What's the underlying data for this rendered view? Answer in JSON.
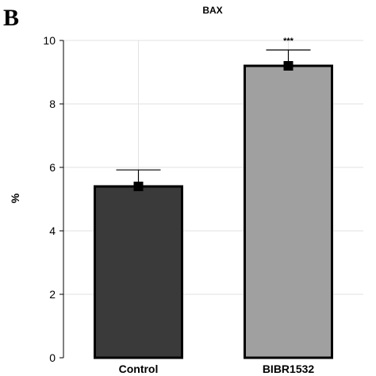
{
  "panel_label": "B",
  "chart_data": {
    "type": "bar",
    "title": "BAX",
    "xlabel": "",
    "ylabel": "%",
    "ylim": [
      0,
      10
    ],
    "yticks": [
      0,
      2,
      4,
      6,
      8,
      10
    ],
    "grid": true,
    "categories": [
      "Control",
      "BIBR1532"
    ],
    "values": [
      5.4,
      9.2
    ],
    "errors": [
      0.52,
      0.5
    ],
    "annotations": [
      "",
      "***"
    ],
    "colors": [
      "#3a3a3a",
      "#a0a0a0"
    ]
  }
}
